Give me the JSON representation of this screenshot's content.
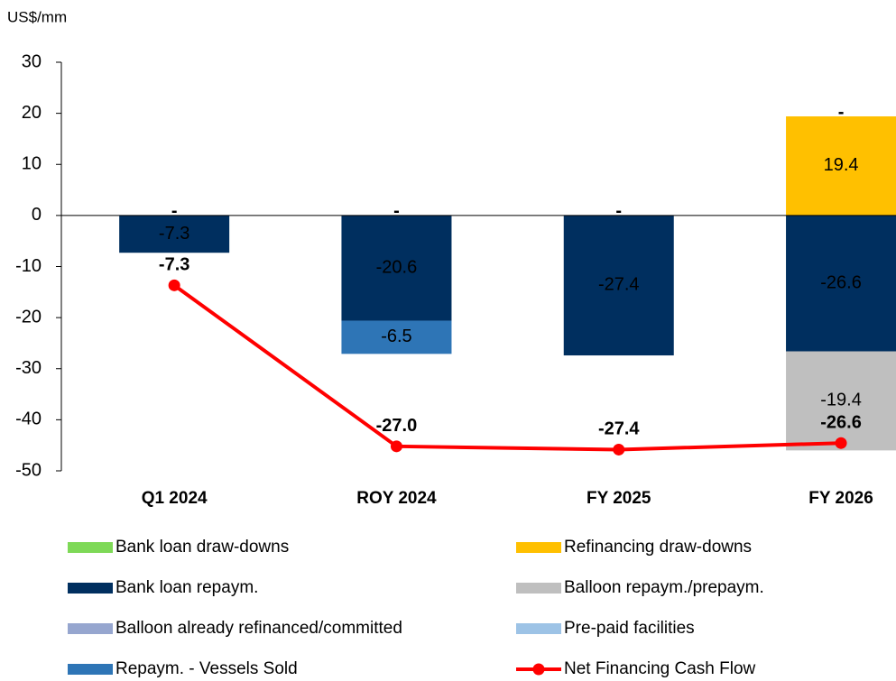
{
  "chart_data": {
    "type": "bar",
    "stacked": true,
    "y_label": "US$/mm",
    "categories": [
      "Q1 2024",
      "ROY 2024",
      "FY 2025",
      "FY 2026"
    ],
    "ylim": [
      -50,
      30
    ],
    "yticks": [
      -50,
      -40,
      -30,
      -20,
      -10,
      0,
      10,
      20,
      30
    ],
    "y2lim": [
      -30,
      20
    ],
    "series": [
      {
        "name": "Bank loan draw-downs",
        "color": "#7ed957",
        "values": [
          0,
          0,
          0,
          0
        ],
        "value_labels": [
          "-",
          "-",
          "-",
          "-"
        ]
      },
      {
        "name": "Refinancing draw-downs",
        "color": "#ffc000",
        "values": [
          0,
          0,
          0,
          19.4
        ]
      },
      {
        "name": "Bank loan repaym.",
        "color": "#002f5f",
        "values": [
          -7.3,
          -20.6,
          -27.4,
          -26.6
        ]
      },
      {
        "name": "Balloon repaym./prepaym.",
        "color": "#bfbfbf",
        "values": [
          0,
          0,
          0,
          -19.4
        ]
      },
      {
        "name": "Balloon already refinanced/committed",
        "color": "#96a6cf",
        "values": [
          0,
          0,
          0,
          0
        ],
        "value_labels": [
          null,
          null,
          null,
          "-"
        ]
      },
      {
        "name": "Pre-paid facilities",
        "color": "#9dc3e6",
        "values": [
          0,
          0,
          0,
          0
        ]
      },
      {
        "name": "Repaym. - Vessels Sold",
        "color": "#2e75b6",
        "values": [
          0,
          -6.5,
          0,
          0
        ]
      },
      {
        "name": "Net Financing Cash Flow",
        "type": "line",
        "axis": "y2",
        "color": "#ff0000",
        "values": [
          -7.3,
          -27.0,
          -27.4,
          -26.6
        ],
        "value_labels": [
          "-7.3",
          "-27.0",
          "-27.4",
          "-26.6"
        ]
      }
    ]
  }
}
